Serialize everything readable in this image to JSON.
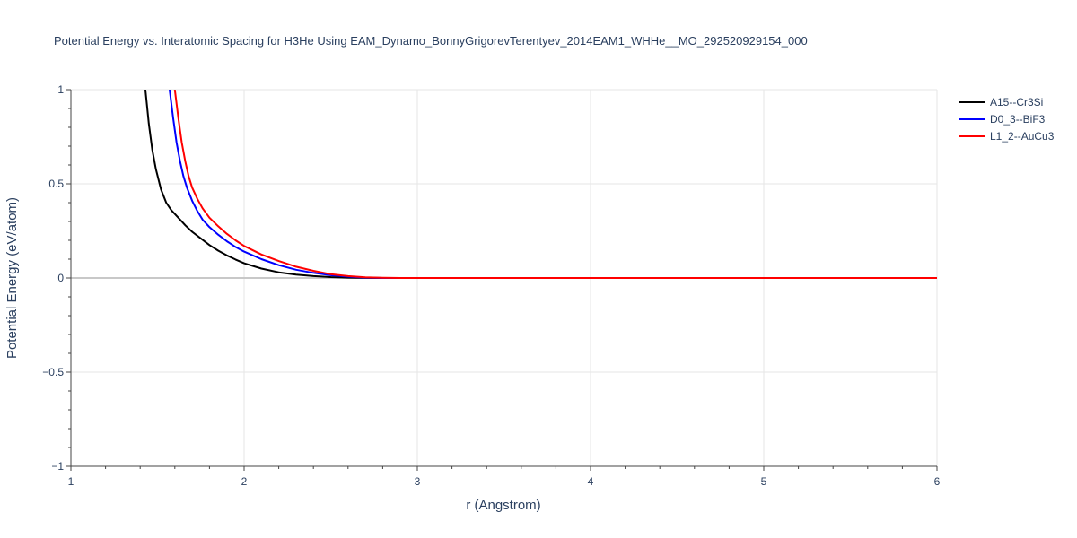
{
  "chart_data": {
    "type": "line",
    "title": "Potential Energy vs. Interatomic Spacing for H3He Using EAM_Dynamo_BonnyGrigorevTerentyev_2014EAM1_WHHe__MO_292520929154_000",
    "xlabel": "r (Angstrom)",
    "ylabel": "Potential Energy (eV/atom)",
    "xlim": [
      1,
      6
    ],
    "ylim": [
      -1,
      1
    ],
    "xticks": [
      1,
      2,
      3,
      4,
      5,
      6
    ],
    "xtick_labels": [
      "1",
      "2",
      "3",
      "4",
      "5",
      "6"
    ],
    "yticks": [
      -1,
      -0.5,
      0,
      0.5,
      1
    ],
    "ytick_labels": [
      "−1",
      "−0.5",
      "0",
      "0.5",
      "1"
    ],
    "grid": true,
    "legend_position": "top-right",
    "series": [
      {
        "name": "A15--Cr3Si",
        "color": "#000000",
        "x": [
          1.43,
          1.45,
          1.47,
          1.49,
          1.52,
          1.55,
          1.58,
          1.62,
          1.66,
          1.7,
          1.75,
          1.8,
          1.85,
          1.9,
          1.95,
          2.0,
          2.1,
          2.2,
          2.3,
          2.4,
          2.5,
          2.6,
          2.7,
          2.8,
          2.9,
          3.0,
          3.5,
          4.0,
          5.0,
          6.0
        ],
        "y": [
          1.0,
          0.82,
          0.68,
          0.58,
          0.47,
          0.4,
          0.36,
          0.32,
          0.28,
          0.245,
          0.21,
          0.175,
          0.145,
          0.12,
          0.098,
          0.078,
          0.05,
          0.03,
          0.018,
          0.01,
          0.005,
          0.002,
          0.0005,
          0.0,
          0.0,
          0.0,
          0.0,
          0.0,
          0.0,
          0.0
        ]
      },
      {
        "name": "D0_3--BiF3",
        "color": "#0000ff",
        "x": [
          1.57,
          1.59,
          1.61,
          1.63,
          1.65,
          1.67,
          1.7,
          1.73,
          1.76,
          1.8,
          1.85,
          1.9,
          1.95,
          2.0,
          2.1,
          2.2,
          2.3,
          2.4,
          2.5,
          2.6,
          2.7,
          2.8,
          2.9,
          3.0,
          3.5,
          4.0,
          5.0,
          6.0
        ],
        "y": [
          1.0,
          0.85,
          0.72,
          0.62,
          0.54,
          0.48,
          0.41,
          0.355,
          0.31,
          0.27,
          0.23,
          0.195,
          0.165,
          0.14,
          0.1,
          0.068,
          0.044,
          0.027,
          0.015,
          0.007,
          0.002,
          0.0,
          0.0,
          0.0,
          0.0,
          0.0,
          0.0,
          0.0
        ]
      },
      {
        "name": "L1_2--AuCu3",
        "color": "#ff0000",
        "x": [
          1.6,
          1.62,
          1.64,
          1.66,
          1.68,
          1.7,
          1.73,
          1.76,
          1.8,
          1.85,
          1.9,
          1.95,
          2.0,
          2.1,
          2.2,
          2.3,
          2.4,
          2.5,
          2.6,
          2.7,
          2.8,
          2.9,
          3.0,
          3.5,
          4.0,
          5.0,
          6.0
        ],
        "y": [
          1.0,
          0.85,
          0.72,
          0.62,
          0.54,
          0.48,
          0.42,
          0.37,
          0.32,
          0.275,
          0.235,
          0.2,
          0.17,
          0.125,
          0.09,
          0.06,
          0.038,
          0.02,
          0.01,
          0.004,
          0.001,
          0.0,
          0.0,
          0.0,
          0.0,
          0.0,
          0.0
        ]
      }
    ]
  }
}
